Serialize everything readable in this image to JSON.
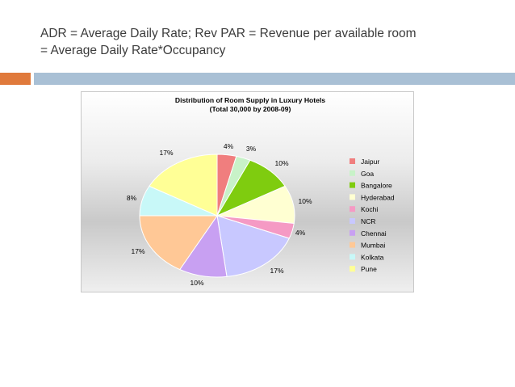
{
  "slide": {
    "heading_line1": "ADR = Average Daily Rate; Rev PAR = Revenue per available room",
    "heading_line2": "= Average Daily Rate*Occupancy",
    "accent_orange": "#e07a3c",
    "accent_blue": "#a9c0d5"
  },
  "chart_data": {
    "type": "pie",
    "title": "Distribution of Room Supply in Luxury Hotels",
    "subtitle": "(Total 30,000 by  2008-09)",
    "legend_position": "right",
    "categories": [
      "Jaipur",
      "Goa",
      "Bangalore",
      "Hyderabad",
      "Kochi",
      "NCR",
      "Chennai",
      "Mumbai",
      "Kolkata",
      "Pune"
    ],
    "values": [
      4,
      3,
      10,
      10,
      4,
      17,
      10,
      17,
      8,
      17
    ],
    "labels": [
      "4%",
      "3%",
      "10%",
      "10%",
      "4%",
      "17%",
      "10%",
      "17%",
      "8%",
      "17%"
    ],
    "colors": [
      "#f07e7e",
      "#c8f2c8",
      "#7fcc0f",
      "#ffffd2",
      "#f59ac4",
      "#c8c8ff",
      "#c8a0f2",
      "#ffc896",
      "#c8f8f8",
      "#ffff96"
    ]
  }
}
